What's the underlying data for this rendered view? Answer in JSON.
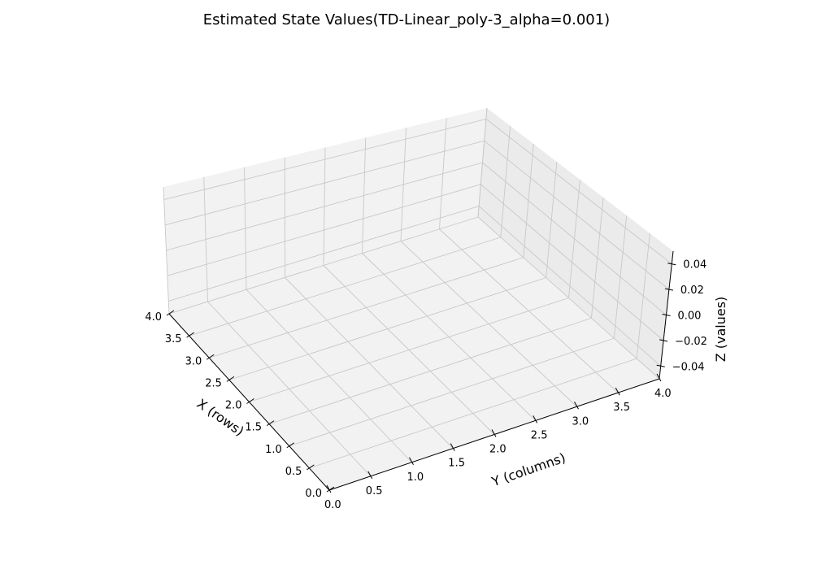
{
  "chart_data": {
    "type": "surface3d",
    "title": "Estimated State Values(TD-Linear_poly-3_alpha=0.001)",
    "xlabel": "X (rows)",
    "ylabel": "Y (columns)",
    "zlabel": "Z (values)",
    "xlim": [
      0.0,
      4.0
    ],
    "ylim": [
      0.0,
      4.0
    ],
    "zlim": [
      -0.05,
      0.05
    ],
    "grid": true,
    "x_ticks": [
      "0.0",
      "0.5",
      "1.0",
      "1.5",
      "2.0",
      "2.5",
      "3.0",
      "3.5",
      "4.0"
    ],
    "y_ticks": [
      "0.0",
      "0.5",
      "1.0",
      "1.5",
      "2.0",
      "2.5",
      "3.0",
      "3.5",
      "4.0"
    ],
    "z_ticks": [
      "−0.04",
      "−0.02",
      "0.00",
      "0.02",
      "0.04"
    ],
    "series": []
  }
}
